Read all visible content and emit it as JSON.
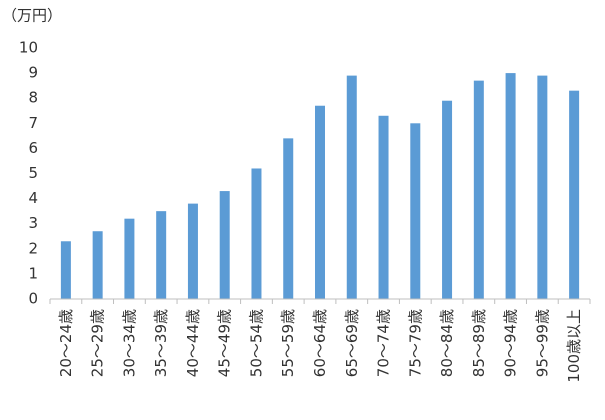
{
  "chart_data": {
    "type": "bar",
    "y_label": "（万円）",
    "categories": [
      "20～24歳",
      "25～29歳",
      "30～34歳",
      "35～39歳",
      "40～44歳",
      "45～49歳",
      "50～54歳",
      "55～59歳",
      "60～64歳",
      "65～69歳",
      "70～74歳",
      "75～79歳",
      "80～84歳",
      "85～89歳",
      "90～94歳",
      "95～99歳",
      "100歳以上"
    ],
    "values": [
      2.3,
      2.7,
      3.2,
      3.5,
      3.8,
      4.3,
      5.2,
      6.4,
      7.7,
      8.9,
      7.3,
      7.0,
      7.9,
      8.7,
      9.0,
      8.9,
      8.3
    ],
    "color": "#5b9bd5",
    "ylim": [
      0,
      10
    ],
    "yticks": [
      0,
      1,
      2,
      3,
      4,
      5,
      6,
      7,
      8,
      9,
      10
    ],
    "grid": false
  }
}
